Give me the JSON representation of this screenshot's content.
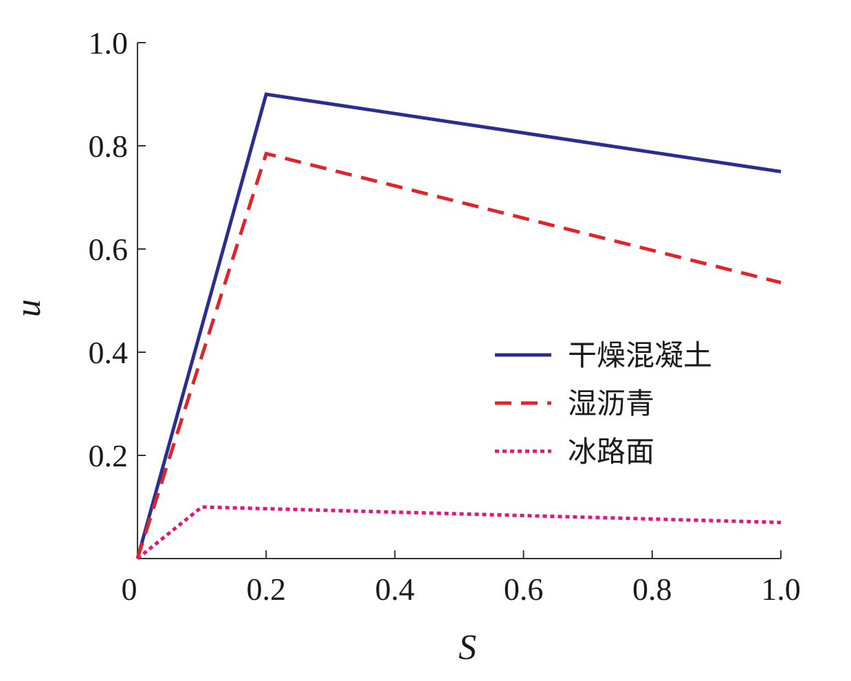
{
  "chart_data": {
    "type": "line",
    "xlabel": "S",
    "ylabel": "u",
    "xlim": [
      0,
      1.0
    ],
    "ylim": [
      0,
      1.0
    ],
    "x_ticks": [
      0,
      0.2,
      0.4,
      0.6,
      0.8,
      1.0
    ],
    "x_tick_labels": [
      "0",
      "0.2",
      "0.4",
      "0.6",
      "0.8",
      "1.0"
    ],
    "y_ticks": [
      0.2,
      0.4,
      0.6,
      0.8,
      1.0
    ],
    "y_tick_labels": [
      "0.2",
      "0.4",
      "0.6",
      "0.8",
      "1.0"
    ],
    "grid": false,
    "legend_position": "right-middle",
    "series": [
      {
        "name": "干燥混凝土",
        "color": "#2b2e8f",
        "style": "solid",
        "x": [
          0,
          0.2,
          1.0
        ],
        "y": [
          0,
          0.9,
          0.75
        ]
      },
      {
        "name": "湿沥青",
        "color": "#e0242b",
        "style": "dashed",
        "x": [
          0,
          0.2,
          1.0
        ],
        "y": [
          0,
          0.785,
          0.535
        ]
      },
      {
        "name": "冰路面",
        "color": "#e0157f",
        "style": "dotted",
        "x": [
          0,
          0.1,
          1.0
        ],
        "y": [
          0,
          0.1,
          0.07
        ]
      }
    ]
  }
}
